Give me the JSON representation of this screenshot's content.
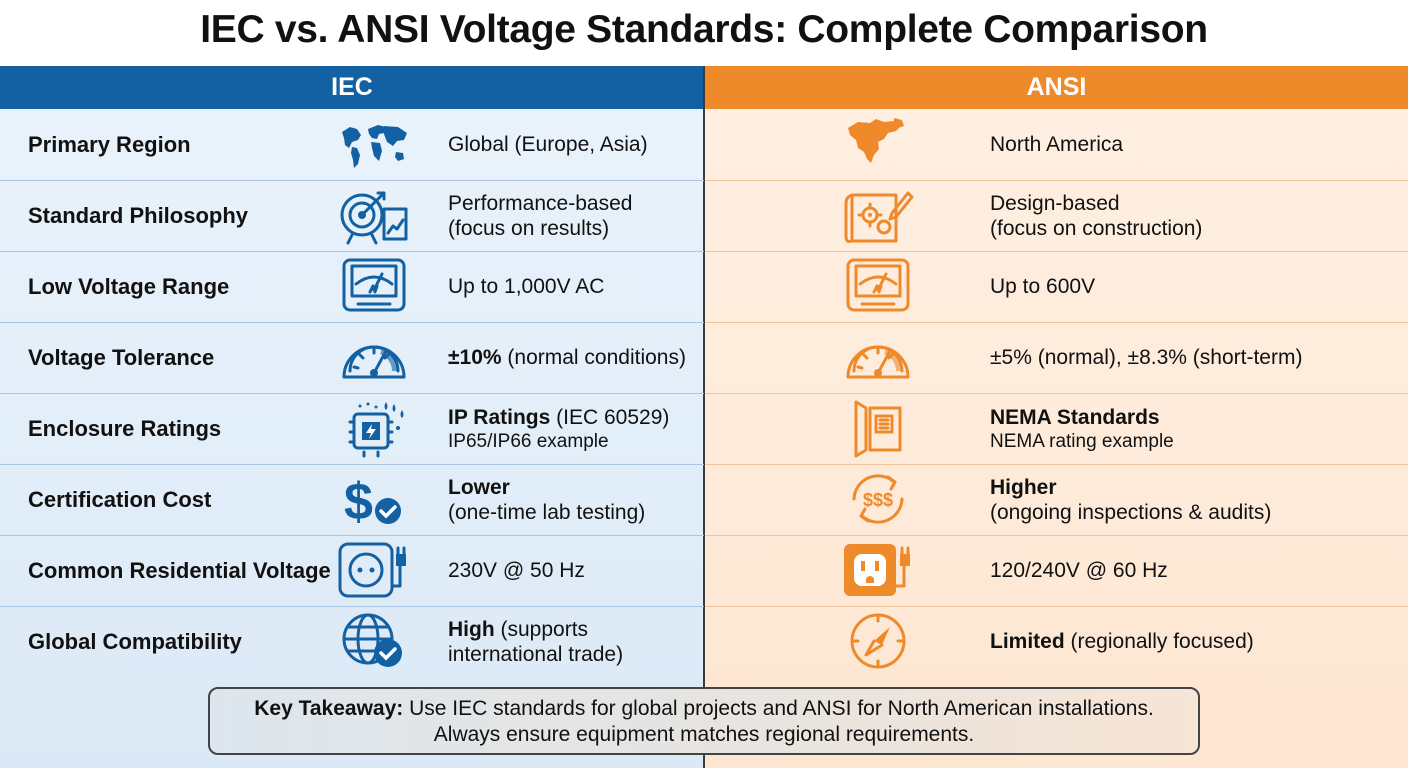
{
  "title": "IEC vs. ANSI Voltage Standards: Complete Comparison",
  "columns": {
    "iec": "IEC",
    "ansi": "ANSI"
  },
  "colors": {
    "iec": "#1361a3",
    "ansi": "#ef8a2b"
  },
  "rows": [
    {
      "label": "Primary Region",
      "iec_icon": "world-map-icon",
      "ansi_icon": "north-america-map-icon",
      "iec": {
        "bold": "",
        "text": "Global (Europe, Asia)",
        "line2": ""
      },
      "ansi": {
        "bold": "",
        "text": "North America",
        "line2": ""
      }
    },
    {
      "label": "Standard Philosophy",
      "iec_icon": "target-chart-icon",
      "ansi_icon": "blueprint-gears-icon",
      "iec": {
        "bold": "",
        "text": "Performance-based",
        "line2": "(focus on results)"
      },
      "ansi": {
        "bold": "",
        "text": "Design-based",
        "line2": "(focus on construction)"
      }
    },
    {
      "label": "Low Voltage Range",
      "iec_icon": "voltmeter-icon",
      "ansi_icon": "voltmeter-icon",
      "iec": {
        "bold": "",
        "text": "Up to 1,000V AC",
        "line2": ""
      },
      "ansi": {
        "bold": "",
        "text": "Up to 600V",
        "line2": ""
      }
    },
    {
      "label": "Voltage Tolerance",
      "iec_icon": "gauge-icon",
      "ansi_icon": "gauge-icon",
      "iec": {
        "bold": "±10%",
        "text": " (normal conditions)",
        "line2": ""
      },
      "ansi": {
        "bold": "",
        "text": "±5% (normal), ±8.3% (short-term)",
        "line2": ""
      }
    },
    {
      "label": "Enclosure Ratings",
      "iec_icon": "ip-enclosure-icon",
      "ansi_icon": "nema-enclosure-icon",
      "iec": {
        "bold": "IP Ratings",
        "text": " (IEC 60529)",
        "line2": "IP65/IP66 example"
      },
      "ansi": {
        "bold": "NEMA Standards",
        "text": "",
        "line2": "NEMA rating example"
      }
    },
    {
      "label": "Certification Cost",
      "iec_icon": "dollar-check-icon",
      "ansi_icon": "recurring-cost-icon",
      "iec": {
        "bold": "Lower",
        "text": "",
        "line2": "(one-time lab testing)"
      },
      "ansi": {
        "bold": "Higher",
        "text": "",
        "line2": "(ongoing inspections & audits)"
      }
    },
    {
      "label": "Common Residential Voltage",
      "iec_icon": "eu-outlet-icon",
      "ansi_icon": "us-outlet-icon",
      "iec": {
        "bold": "",
        "text": "230V @ 50 Hz",
        "line2": ""
      },
      "ansi": {
        "bold": "",
        "text": "120/240V @ 60 Hz",
        "line2": ""
      }
    },
    {
      "label": "Global Compatibility",
      "iec_icon": "globe-check-icon",
      "ansi_icon": "compass-icon",
      "iec": {
        "bold": "High",
        "text": " (supports",
        "line2": "international trade)"
      },
      "ansi": {
        "bold": "Limited",
        "text": " (regionally focused)",
        "line2": ""
      }
    }
  ],
  "takeaway": {
    "bold": "Key Takeaway:",
    "line1": " Use IEC standards for global projects and ANSI for North American installations.",
    "line2": "Always ensure equipment matches regional requirements."
  }
}
